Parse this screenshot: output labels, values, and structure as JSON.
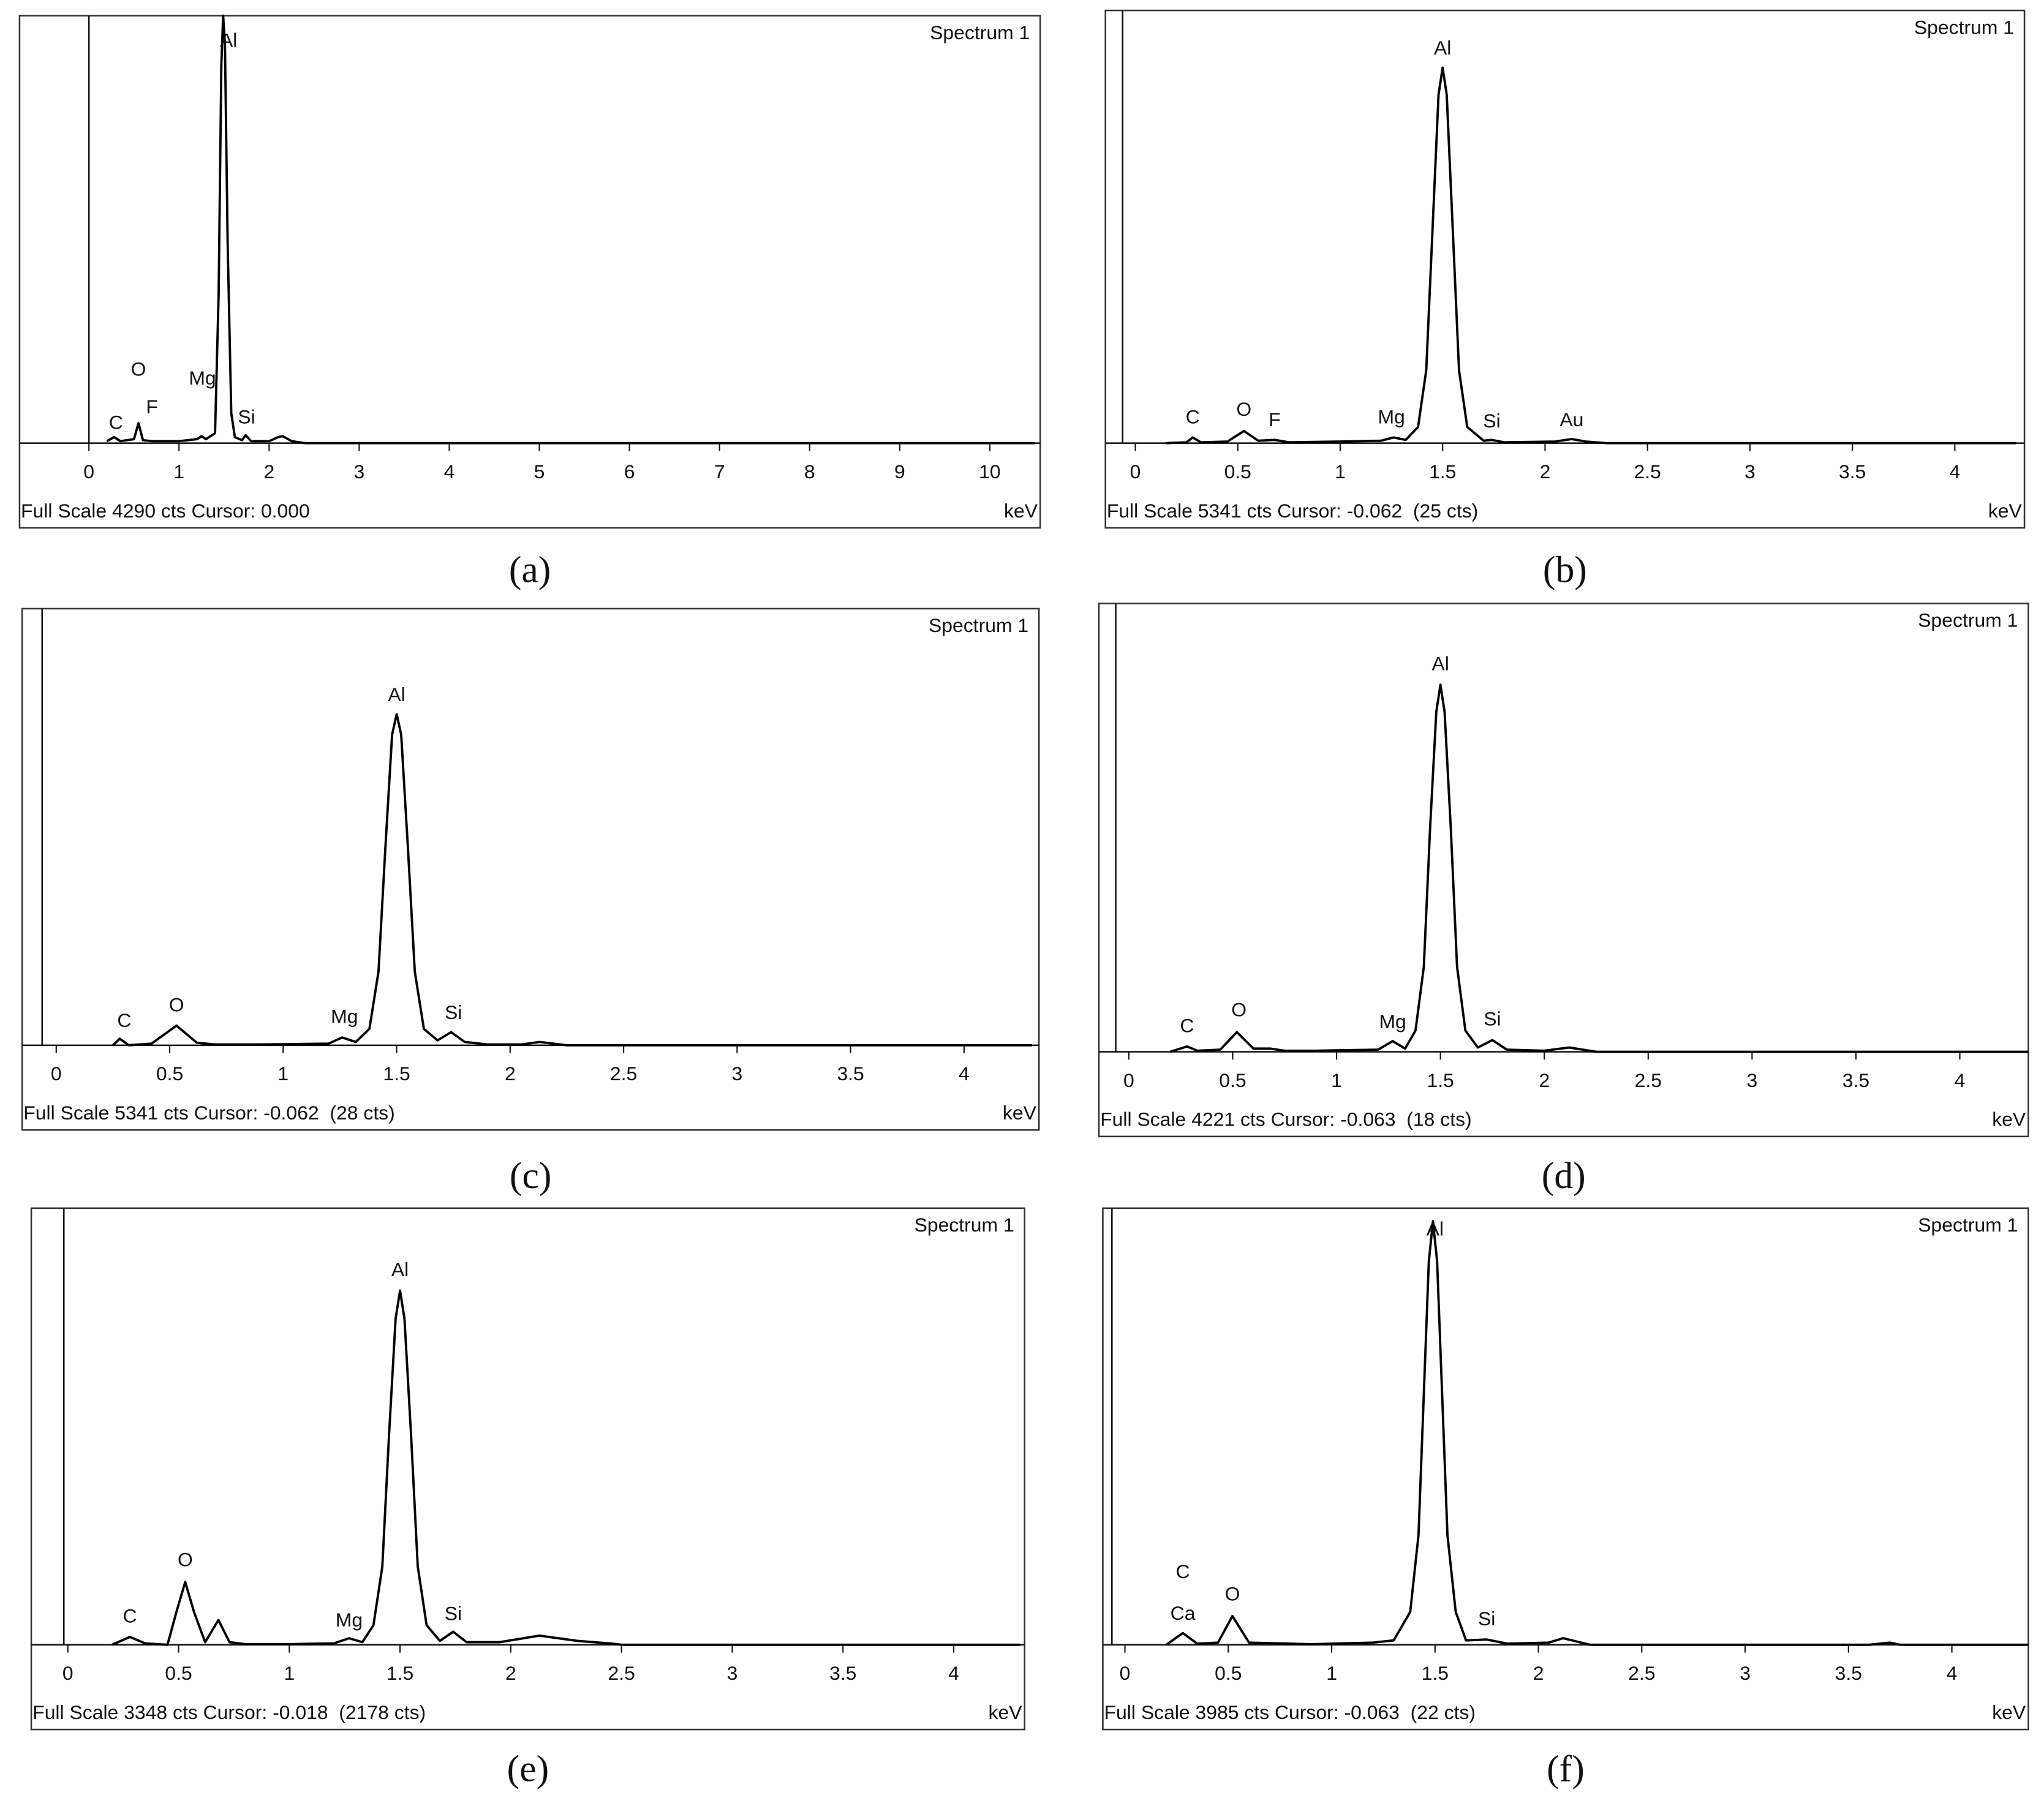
{
  "chart_data": [
    {
      "type": "line",
      "title": "Spectrum 1",
      "footer": "Full Scale 4290 cts Cursor: 0.000",
      "xlabel": "keV",
      "caption": "(a)",
      "color": "#000000",
      "xlim": [
        -0.77,
        10.56
      ],
      "ylim": [
        0,
        4290
      ],
      "xticks": [
        0,
        1,
        2,
        3,
        4,
        5,
        6,
        7,
        8,
        9,
        10
      ],
      "cursor": 0,
      "x": [
        0.2,
        0.28,
        0.35,
        0.5,
        0.55,
        0.6,
        0.7,
        1.0,
        1.2,
        1.25,
        1.3,
        1.4,
        1.44,
        1.47,
        1.49,
        1.51,
        1.54,
        1.58,
        1.62,
        1.7,
        1.74,
        1.8,
        2.0,
        2.1,
        2.15,
        2.25,
        2.4,
        10.5
      ],
      "values": [
        20,
        60,
        20,
        40,
        200,
        30,
        20,
        20,
        40,
        70,
        40,
        100,
        1500,
        3800,
        4290,
        4000,
        2000,
        300,
        60,
        30,
        80,
        20,
        20,
        60,
        70,
        20,
        0,
        0
      ],
      "annotations": [
        {
          "text": "Al",
          "x": 1.55,
          "y": 4030
        },
        {
          "text": "O",
          "x": 0.55,
          "y": 730
        },
        {
          "text": "F",
          "x": 0.7,
          "y": 350
        },
        {
          "text": "Mg",
          "x": 1.26,
          "y": 640
        },
        {
          "text": "C",
          "x": 0.3,
          "y": 195
        },
        {
          "text": "Si",
          "x": 1.75,
          "y": 250
        }
      ]
    },
    {
      "type": "line",
      "title": "Spectrum 1",
      "footer": "Full Scale 5341 cts Cursor: -0.062  (25 cts)",
      "xlabel": "keV",
      "caption": "(b)",
      "color": "#000000",
      "xlim": [
        -0.146,
        4.34
      ],
      "ylim": [
        0,
        5341
      ],
      "xticks": [
        0,
        0.5,
        1,
        1.5,
        2,
        2.5,
        3,
        3.5,
        4
      ],
      "cursor": -0.062,
      "x": [
        0.15,
        0.25,
        0.28,
        0.32,
        0.45,
        0.53,
        0.6,
        0.68,
        0.75,
        1.0,
        1.2,
        1.26,
        1.32,
        1.38,
        1.42,
        1.45,
        1.48,
        1.5,
        1.52,
        1.55,
        1.58,
        1.62,
        1.7,
        1.74,
        1.8,
        2.05,
        2.13,
        2.2,
        2.3,
        4.3
      ],
      "values": [
        0,
        10,
        70,
        10,
        20,
        150,
        30,
        40,
        10,
        20,
        30,
        70,
        40,
        200,
        900,
        2600,
        4300,
        4635,
        4300,
        2600,
        900,
        200,
        30,
        40,
        10,
        20,
        50,
        20,
        0,
        0
      ],
      "annotations": [
        {
          "text": "Al",
          "x": 1.5,
          "y": 4860
        },
        {
          "text": "C",
          "x": 0.28,
          "y": 305
        },
        {
          "text": "O",
          "x": 0.53,
          "y": 400
        },
        {
          "text": "F",
          "x": 0.68,
          "y": 272
        },
        {
          "text": "Mg",
          "x": 1.25,
          "y": 305
        },
        {
          "text": "Si",
          "x": 1.74,
          "y": 256
        },
        {
          "text": "Au",
          "x": 2.13,
          "y": 272
        }
      ]
    },
    {
      "type": "line",
      "title": "Spectrum 1",
      "footer": "Full Scale 5341 cts Cursor: -0.062  (28 cts)",
      "xlabel": "keV",
      "caption": "(c)",
      "color": "#000000",
      "xlim": [
        -0.15,
        4.33
      ],
      "ylim": [
        0,
        5341
      ],
      "xticks": [
        0,
        0.5,
        1,
        1.5,
        2,
        2.5,
        3,
        3.5,
        4
      ],
      "cursor": -0.062,
      "x": [
        0.25,
        0.28,
        0.32,
        0.42,
        0.53,
        0.62,
        0.7,
        0.9,
        1.2,
        1.26,
        1.32,
        1.38,
        1.42,
        1.45,
        1.48,
        1.5,
        1.52,
        1.55,
        1.58,
        1.62,
        1.68,
        1.74,
        1.8,
        1.9,
        2.05,
        2.13,
        2.25,
        4.3
      ],
      "values": [
        0,
        80,
        0,
        20,
        240,
        30,
        10,
        10,
        20,
        95,
        40,
        200,
        900,
        2400,
        3800,
        4050,
        3800,
        2400,
        900,
        200,
        60,
        160,
        40,
        10,
        10,
        40,
        0,
        0
      ],
      "annotations": [
        {
          "text": "Al",
          "x": 1.5,
          "y": 4272
        },
        {
          "text": "C",
          "x": 0.3,
          "y": 287
        },
        {
          "text": "O",
          "x": 0.53,
          "y": 478
        },
        {
          "text": "Mg",
          "x": 1.27,
          "y": 335
        },
        {
          "text": "Si",
          "x": 1.75,
          "y": 383
        }
      ]
    },
    {
      "type": "line",
      "title": "Spectrum 1",
      "footer": "Full Scale 4221 cts Cursor: -0.063  (18 cts)",
      "xlabel": "keV",
      "caption": "(d)",
      "color": "#000000",
      "xlim": [
        -0.144,
        4.33
      ],
      "ylim": [
        0,
        4221
      ],
      "xticks": [
        0,
        0.5,
        1,
        1.5,
        2,
        2.5,
        3,
        3.5,
        4
      ],
      "cursor": -0.063,
      "x": [
        0.2,
        0.28,
        0.33,
        0.44,
        0.52,
        0.6,
        0.68,
        0.75,
        0.9,
        1.2,
        1.27,
        1.33,
        1.38,
        1.42,
        1.45,
        1.48,
        1.5,
        1.52,
        1.55,
        1.58,
        1.62,
        1.68,
        1.75,
        1.82,
        2.0,
        2.12,
        2.25,
        4.33
      ],
      "values": [
        0,
        50,
        10,
        20,
        185,
        30,
        30,
        10,
        10,
        20,
        100,
        30,
        200,
        800,
        2100,
        3200,
        3456,
        3200,
        2100,
        800,
        200,
        40,
        110,
        20,
        10,
        40,
        0,
        0
      ],
      "annotations": [
        {
          "text": "Al",
          "x": 1.5,
          "y": 3640
        },
        {
          "text": "C",
          "x": 0.28,
          "y": 234
        },
        {
          "text": "O",
          "x": 0.53,
          "y": 383
        },
        {
          "text": "Mg",
          "x": 1.27,
          "y": 271
        },
        {
          "text": "Si",
          "x": 1.75,
          "y": 296
        }
      ]
    },
    {
      "type": "line",
      "title": "Spectrum 1",
      "footer": "Full Scale 3348 cts Cursor: -0.018  (2178 cts)",
      "xlabel": "keV",
      "caption": "(e)",
      "color": "#000000",
      "xlim": [
        -0.165,
        4.32
      ],
      "ylim": [
        0,
        3348
      ],
      "xticks": [
        0,
        0.5,
        1,
        1.5,
        2,
        2.5,
        3,
        3.5,
        4
      ],
      "cursor": -0.018,
      "x": [
        0.2,
        0.28,
        0.35,
        0.45,
        0.49,
        0.53,
        0.57,
        0.62,
        0.68,
        0.73,
        0.8,
        1.0,
        1.2,
        1.27,
        1.33,
        1.38,
        1.42,
        1.45,
        1.48,
        1.5,
        1.52,
        1.55,
        1.58,
        1.62,
        1.68,
        1.74,
        1.8,
        1.95,
        2.13,
        2.3,
        2.45,
        2.5,
        4.3
      ],
      "values": [
        0,
        60,
        10,
        0,
        250,
        481,
        250,
        20,
        190,
        20,
        5,
        5,
        10,
        50,
        20,
        150,
        600,
        1600,
        2500,
        2716,
        2500,
        1600,
        600,
        150,
        30,
        100,
        20,
        20,
        70,
        30,
        10,
        0,
        0
      ],
      "annotations": [
        {
          "text": "Al",
          "x": 1.5,
          "y": 2866
        },
        {
          "text": "C",
          "x": 0.28,
          "y": 210
        },
        {
          "text": "O",
          "x": 0.53,
          "y": 641
        },
        {
          "text": "Mg",
          "x": 1.27,
          "y": 180
        },
        {
          "text": "Si",
          "x": 1.74,
          "y": 230
        }
      ]
    },
    {
      "type": "line",
      "title": "Spectrum 1",
      "footer": "Full Scale 3985 cts Cursor: -0.063  (22 cts)",
      "xlabel": "keV",
      "caption": "(f)",
      "color": "#000000",
      "xlim": [
        -0.107,
        4.37
      ],
      "ylim": [
        0,
        3985
      ],
      "xticks": [
        0,
        0.5,
        1,
        1.5,
        2,
        2.5,
        3,
        3.5,
        4
      ],
      "cursor": -0.063,
      "x": [
        0.2,
        0.28,
        0.35,
        0.45,
        0.52,
        0.6,
        0.7,
        0.9,
        1.2,
        1.3,
        1.38,
        1.42,
        1.45,
        1.47,
        1.49,
        1.51,
        1.53,
        1.56,
        1.6,
        1.65,
        1.75,
        1.85,
        2.05,
        2.12,
        2.25,
        3.6,
        3.7,
        3.75,
        4.37
      ],
      "values": [
        0,
        107,
        10,
        20,
        262,
        20,
        15,
        5,
        20,
        40,
        300,
        1000,
        2500,
        3500,
        3866,
        3500,
        2500,
        1000,
        300,
        40,
        48,
        10,
        20,
        60,
        0,
        0,
        20,
        0,
        0
      ],
      "annotations": [
        {
          "text": "Al",
          "x": 1.5,
          "y": 3784
        },
        {
          "text": "C",
          "x": 0.28,
          "y": 654
        },
        {
          "text": "Ca",
          "x": 0.28,
          "y": 274
        },
        {
          "text": "O",
          "x": 0.52,
          "y": 452
        },
        {
          "text": "Si",
          "x": 1.75,
          "y": 226
        }
      ]
    }
  ]
}
